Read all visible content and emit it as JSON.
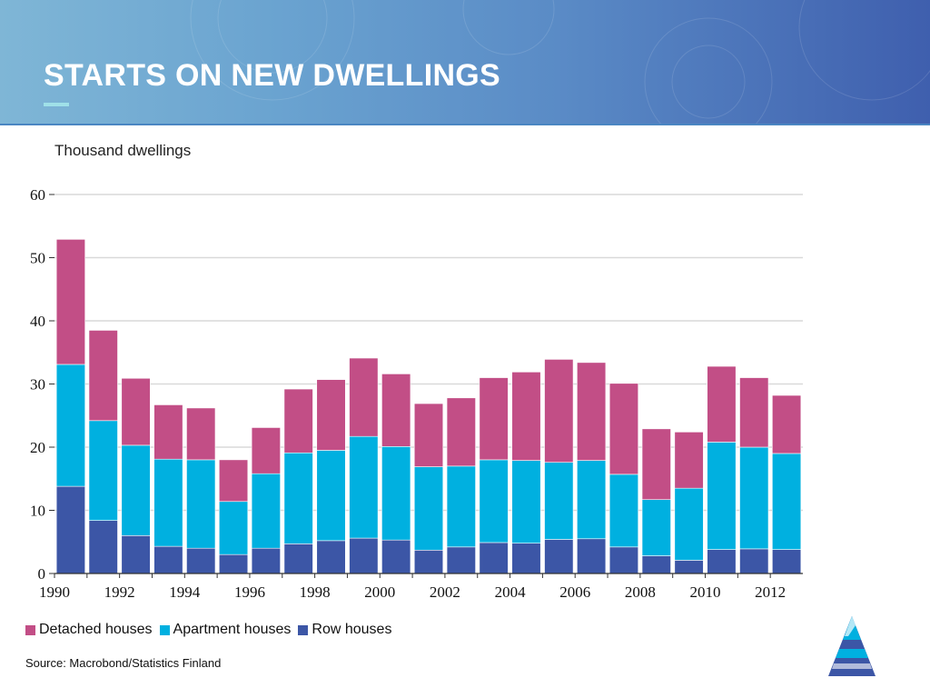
{
  "slide": {
    "title": "STARTS ON NEW DWELLINGS",
    "unit_label": "Thousand dwellings",
    "source": "Source: Macrobond/Statistics Finland"
  },
  "colors": {
    "banner_start": "#7fb6d6",
    "banner_end": "#3f5fae",
    "detached": "#c24e86",
    "apartment": "#00b0e0",
    "row": "#3c56a6",
    "grid": "#d9d9d9"
  },
  "chart_data": {
    "type": "bar",
    "stacked": true,
    "categories": [
      "1990",
      "1991",
      "1992",
      "1993",
      "1994",
      "1995",
      "1996",
      "1997",
      "1998",
      "1999",
      "2000",
      "2001",
      "2002",
      "2003",
      "2004",
      "2005",
      "2006",
      "2007",
      "2008",
      "2009",
      "2010",
      "2011",
      "2012"
    ],
    "x_tick_labels": [
      "1990",
      "1992",
      "1994",
      "1996",
      "1998",
      "2000",
      "2002",
      "2004",
      "2006",
      "2008",
      "2010",
      "2012"
    ],
    "y_ticks": [
      0,
      10,
      20,
      30,
      40,
      50,
      60
    ],
    "ylim": [
      0,
      60
    ],
    "grid": true,
    "legend_position": "bottom-left",
    "series": [
      {
        "name": "Row houses",
        "color": "#3c56a6",
        "values": [
          13.8,
          8.4,
          6.0,
          4.3,
          4.0,
          3.0,
          4.0,
          4.7,
          5.2,
          5.6,
          5.3,
          3.7,
          4.2,
          4.9,
          4.8,
          5.4,
          5.5,
          4.2,
          2.8,
          2.1,
          3.8,
          3.9,
          3.8
        ]
      },
      {
        "name": "Apartment houses",
        "color": "#00b0e0",
        "values": [
          19.3,
          15.8,
          14.3,
          13.8,
          14.0,
          8.4,
          11.8,
          14.4,
          14.3,
          16.1,
          14.8,
          13.2,
          12.8,
          13.1,
          13.1,
          12.2,
          12.4,
          11.5,
          8.9,
          11.4,
          17.0,
          16.1,
          15.2
        ]
      },
      {
        "name": "Detached houses",
        "color": "#c24e86",
        "values": [
          19.8,
          14.3,
          10.6,
          8.6,
          8.2,
          6.6,
          7.3,
          10.1,
          11.2,
          12.4,
          11.5,
          10.0,
          10.8,
          13.0,
          14.0,
          16.3,
          15.5,
          14.4,
          11.2,
          8.9,
          12.0,
          11.0,
          9.2
        ]
      }
    ]
  },
  "legend": {
    "detached": "Detached houses",
    "apartment": "Apartment houses",
    "row": "Row houses"
  }
}
